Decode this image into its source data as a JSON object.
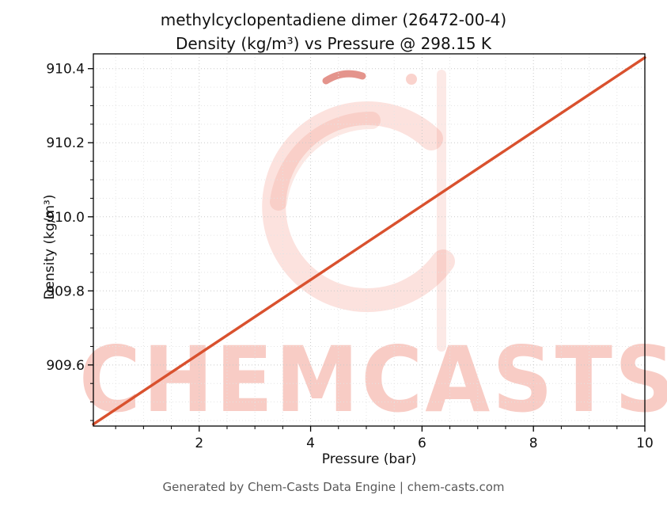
{
  "title": {
    "line1": "methylcyclopentadiene dimer (26472-00-4)",
    "line2": "Density (kg/m³) vs Pressure @ 298.15 K"
  },
  "watermark": {
    "text": "CHEMCASTS",
    "color": "#eb644e"
  },
  "footer": {
    "text": "Generated by Chem-Casts Data Engine | chem-casts.com"
  },
  "chart_data": {
    "type": "line",
    "title": "methylcyclopentadiene dimer (26472-00-4) Density (kg/m³) vs Pressure @ 298.15 K",
    "xlabel": "Pressure (bar)",
    "ylabel": "Density (kg/m³)",
    "x": [
      0.1,
      1,
      2,
      3,
      4,
      5,
      6,
      7,
      8,
      9,
      10
    ],
    "y": [
      909.44,
      909.53,
      909.63,
      909.73,
      909.83,
      909.93,
      910.03,
      910.13,
      910.23,
      910.33,
      910.43
    ],
    "xlim": [
      0.1,
      10
    ],
    "ylim": [
      909.435,
      910.44
    ],
    "xticks": [
      2,
      4,
      6,
      8,
      10
    ],
    "yticks": [
      909.6,
      909.8,
      910.0,
      910.2,
      910.4
    ],
    "x_minor_step": 0.5,
    "y_minor_step": 0.05,
    "line_color": "#d9512e",
    "grid": true,
    "legend": "none"
  }
}
